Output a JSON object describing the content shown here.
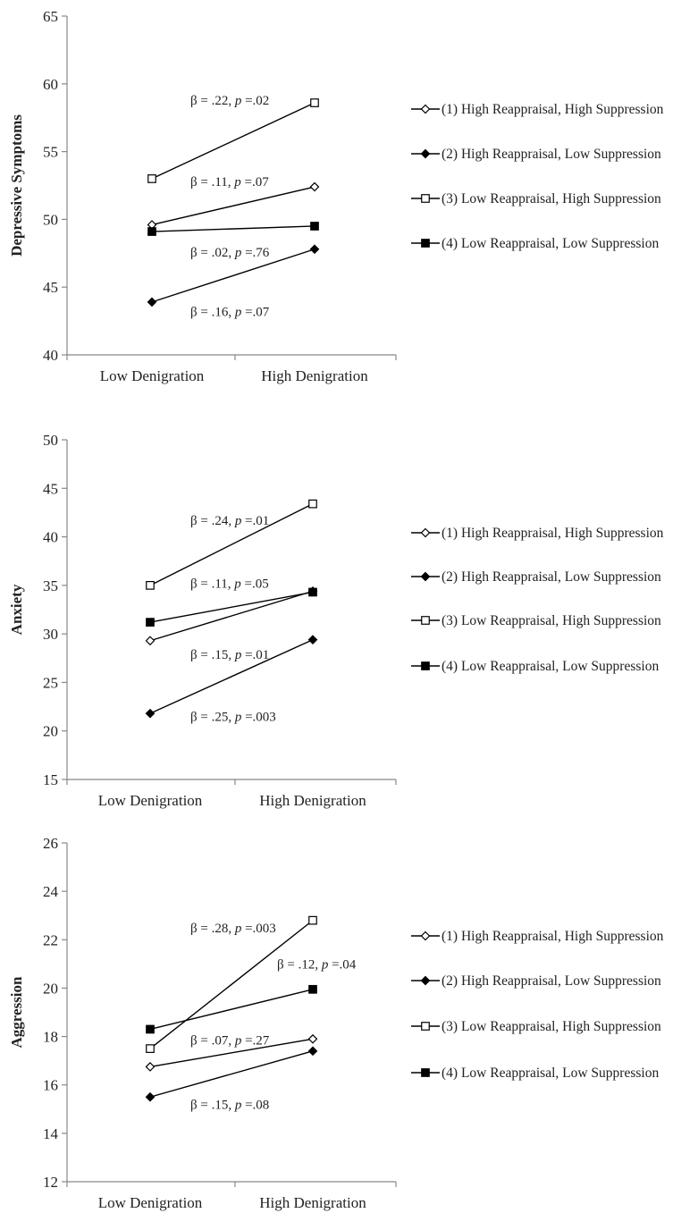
{
  "chart_data": [
    {
      "type": "line",
      "ylabel": "Depressive Symptoms",
      "categories": [
        "Low Denigration",
        "High Denigration"
      ],
      "ylim": [
        40,
        65
      ],
      "yticks": [
        40,
        45,
        50,
        55,
        60,
        65
      ],
      "series": [
        {
          "name": "(1) High Reappraisal, High Suppression",
          "marker": "diamond-open",
          "values": [
            49.6,
            52.4
          ]
        },
        {
          "name": "(2) High Reappraisal, Low Suppression",
          "marker": "diamond-filled",
          "values": [
            43.9,
            47.8
          ]
        },
        {
          "name": "(3) Low Reappraisal, High Suppression",
          "marker": "square-open",
          "values": [
            53.0,
            58.6
          ]
        },
        {
          "name": "(4) Low Reappraisal, Low Suppression",
          "marker": "square-filled",
          "values": [
            49.1,
            49.5
          ]
        }
      ],
      "annotations": [
        {
          "beta": "β = .22, ",
          "p_label": "p",
          "p_value": " =.02",
          "y": 58.8
        },
        {
          "beta": "β = .11, ",
          "p_label": "p",
          "p_value": " =.07",
          "y": 52.8
        },
        {
          "beta": "β = .02, ",
          "p_label": "p",
          "p_value": " =.76",
          "y": 47.6
        },
        {
          "beta": "β = .16, ",
          "p_label": "p",
          "p_value": " =.07",
          "y": 43.2
        }
      ]
    },
    {
      "type": "line",
      "ylabel": "Anxiety",
      "categories": [
        "Low Denigration",
        "High Denigration"
      ],
      "ylim": [
        15,
        50
      ],
      "yticks": [
        15,
        20,
        25,
        30,
        35,
        40,
        45,
        50
      ],
      "series": [
        {
          "name": "(1) High Reappraisal, High Suppression",
          "marker": "diamond-open",
          "values": [
            29.3,
            34.4
          ]
        },
        {
          "name": "(2) High Reappraisal, Low Suppression",
          "marker": "diamond-filled",
          "values": [
            21.8,
            29.4
          ]
        },
        {
          "name": "(3) Low Reappraisal, High Suppression",
          "marker": "square-open",
          "values": [
            35.0,
            43.4
          ]
        },
        {
          "name": "(4) Low Reappraisal, Low Suppression",
          "marker": "square-filled",
          "values": [
            31.2,
            34.3
          ]
        }
      ],
      "annotations": [
        {
          "beta": "β = .24, ",
          "p_label": "p",
          "p_value": " =.01",
          "y": 41.7
        },
        {
          "beta": "β = .11, ",
          "p_label": "p",
          "p_value": " =.05",
          "y": 35.2
        },
        {
          "beta": "β = .15, ",
          "p_label": "p",
          "p_value": " =.01",
          "y": 27.9
        },
        {
          "beta": "β = .25, ",
          "p_label": "p",
          "p_value": " =.003",
          "y": 21.5
        }
      ]
    },
    {
      "type": "line",
      "ylabel": "Aggression",
      "categories": [
        "Low Denigration",
        "High Denigration"
      ],
      "ylim": [
        12,
        26
      ],
      "yticks": [
        12,
        14,
        16,
        18,
        20,
        22,
        24,
        26
      ],
      "series": [
        {
          "name": "(1) High Reappraisal, High Suppression",
          "marker": "diamond-open",
          "values": [
            16.75,
            17.9
          ]
        },
        {
          "name": "(2) High Reappraisal, Low Suppression",
          "marker": "diamond-filled",
          "values": [
            15.5,
            17.4
          ]
        },
        {
          "name": "(3) Low Reappraisal, High Suppression",
          "marker": "square-open",
          "values": [
            17.5,
            22.8
          ]
        },
        {
          "name": "(4) Low Reappraisal, Low Suppression",
          "marker": "square-filled",
          "values": [
            18.3,
            19.95
          ]
        }
      ],
      "annotations": [
        {
          "beta": "β = .28, ",
          "p_label": "p",
          "p_value": " =.003",
          "y": 22.5
        },
        {
          "beta": "β = .12, ",
          "p_label": "p",
          "p_value": " =.04",
          "y": 21.0,
          "near": "right"
        },
        {
          "beta": "β = .07, ",
          "p_label": "p",
          "p_value": " =.27",
          "y": 17.85
        },
        {
          "beta": "β = .15, ",
          "p_label": "p",
          "p_value": " =.08",
          "y": 15.2
        }
      ]
    }
  ]
}
